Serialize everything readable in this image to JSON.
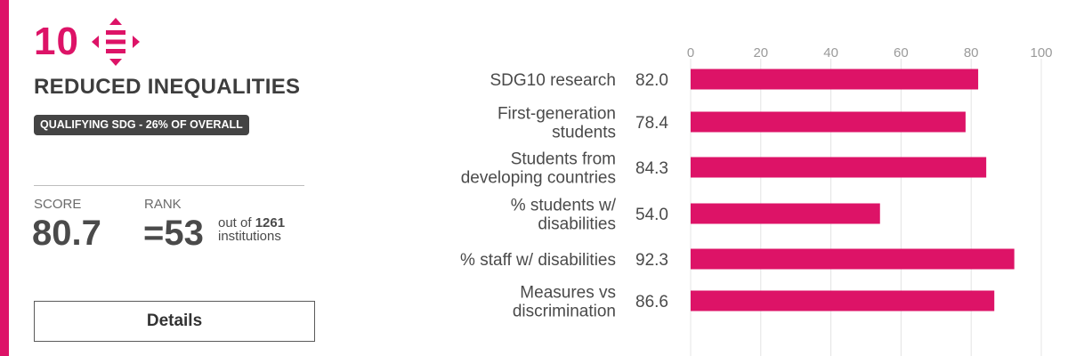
{
  "sdg": {
    "number": "10",
    "title": "REDUCED INEQUALITIES",
    "badge": "QUALIFYING SDG - 26% OF OVERALL",
    "icon": "reduced-inequalities-icon",
    "color": "#dd1367"
  },
  "metrics": {
    "score_label": "SCORE",
    "score_value": "80.7",
    "rank_label": "RANK",
    "rank_value": "=53",
    "rank_out_of": "out of",
    "rank_total": "1261",
    "rank_unit": "institutions"
  },
  "details_button": {
    "label": "Details"
  },
  "chart_data": {
    "type": "bar",
    "orientation": "horizontal",
    "categories": [
      [
        "SDG10 research"
      ],
      [
        "First-generation",
        "students"
      ],
      [
        "Students from",
        "developing countries"
      ],
      [
        "% students w/",
        "disabilities"
      ],
      [
        "% staff w/ disabilities"
      ],
      [
        "Measures vs",
        "discrimination"
      ]
    ],
    "values": [
      82.0,
      78.4,
      84.3,
      54.0,
      92.3,
      86.6
    ],
    "value_labels": [
      "82.0",
      "78.4",
      "84.3",
      "54.0",
      "92.3",
      "86.6"
    ],
    "xlim": [
      0,
      100
    ],
    "ticks": [
      0,
      20,
      40,
      60,
      80,
      100
    ],
    "tick_labels": [
      "0",
      "20",
      "40",
      "60",
      "80",
      "100"
    ],
    "grid": true,
    "bar_color": "#dd1367"
  }
}
